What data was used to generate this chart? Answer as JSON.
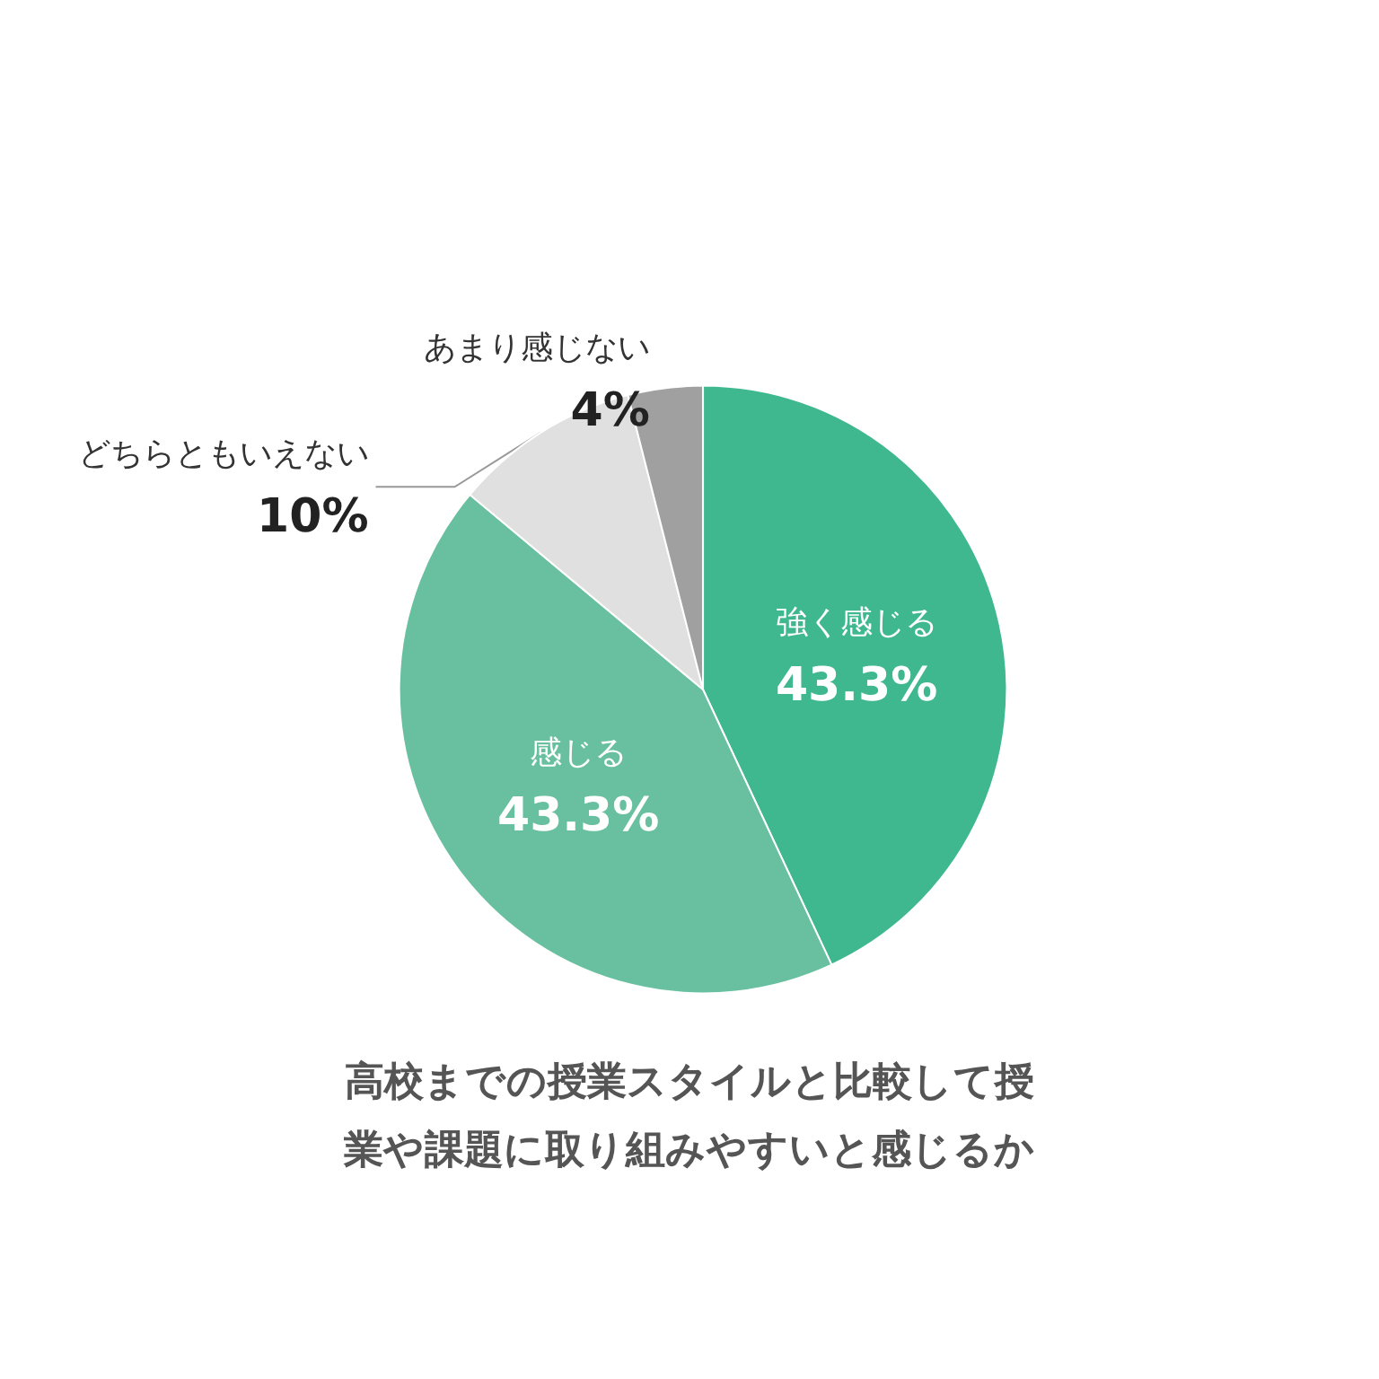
{
  "chart_data": {
    "type": "pie",
    "title": "高校までの授業スタイルと比較して授業や課題に取り組みやすいと感じるか",
    "categories": [
      "強く感じる",
      "感じる",
      "どちらともいえない",
      "あまり感じない"
    ],
    "values": [
      43.3,
      43.3,
      10,
      4
    ],
    "colors": [
      "#3fb890",
      "#68c0a0",
      "#e0e0e0",
      "#a0a0a0"
    ],
    "value_labels": [
      "43.3%",
      "43.3%",
      "10%",
      "4%"
    ],
    "legend": false
  }
}
